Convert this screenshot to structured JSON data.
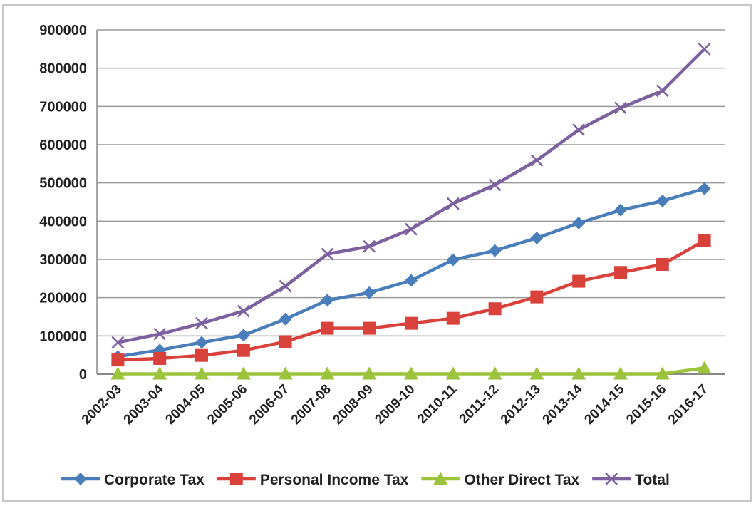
{
  "chart_data": {
    "type": "line",
    "title": "",
    "xlabel": "",
    "ylabel": "",
    "categories": [
      "2002-03",
      "2003-04",
      "2004-05",
      "2005-06",
      "2006-07",
      "2007-08",
      "2008-09",
      "2009-10",
      "2010-11",
      "2011-12",
      "2012-13",
      "2013-14",
      "2014-15",
      "2015-16",
      "2016-17"
    ],
    "ylim": [
      0,
      900000
    ],
    "yticks": [
      0,
      100000,
      200000,
      300000,
      400000,
      500000,
      600000,
      700000,
      800000,
      900000
    ],
    "grid": true,
    "legend_position": "bottom",
    "series": [
      {
        "name": "Corporate Tax",
        "color": "#4a7ebb",
        "marker": "diamond",
        "values": [
          46000,
          63000,
          83000,
          102000,
          144000,
          193000,
          213000,
          245000,
          299000,
          323000,
          356000,
          395000,
          429000,
          453000,
          485000
        ]
      },
      {
        "name": "Personal Income Tax",
        "color": "#d9413b",
        "marker": "square",
        "values": [
          37000,
          41000,
          49000,
          62000,
          85000,
          120000,
          120000,
          133000,
          146000,
          171000,
          202000,
          243000,
          266000,
          287000,
          349000
        ]
      },
      {
        "name": "Other Direct Tax",
        "color": "#9bc43c",
        "marker": "triangle",
        "values": [
          1000,
          1000,
          1000,
          1000,
          1000,
          1000,
          1000,
          1000,
          1000,
          1000,
          1000,
          1000,
          1000,
          1000,
          16000
        ]
      },
      {
        "name": "Total",
        "color": "#7d60a0",
        "marker": "x",
        "values": [
          83000,
          105000,
          133000,
          165000,
          230000,
          314000,
          334000,
          379000,
          446000,
          495000,
          559000,
          639000,
          696000,
          741000,
          850000
        ]
      }
    ]
  }
}
